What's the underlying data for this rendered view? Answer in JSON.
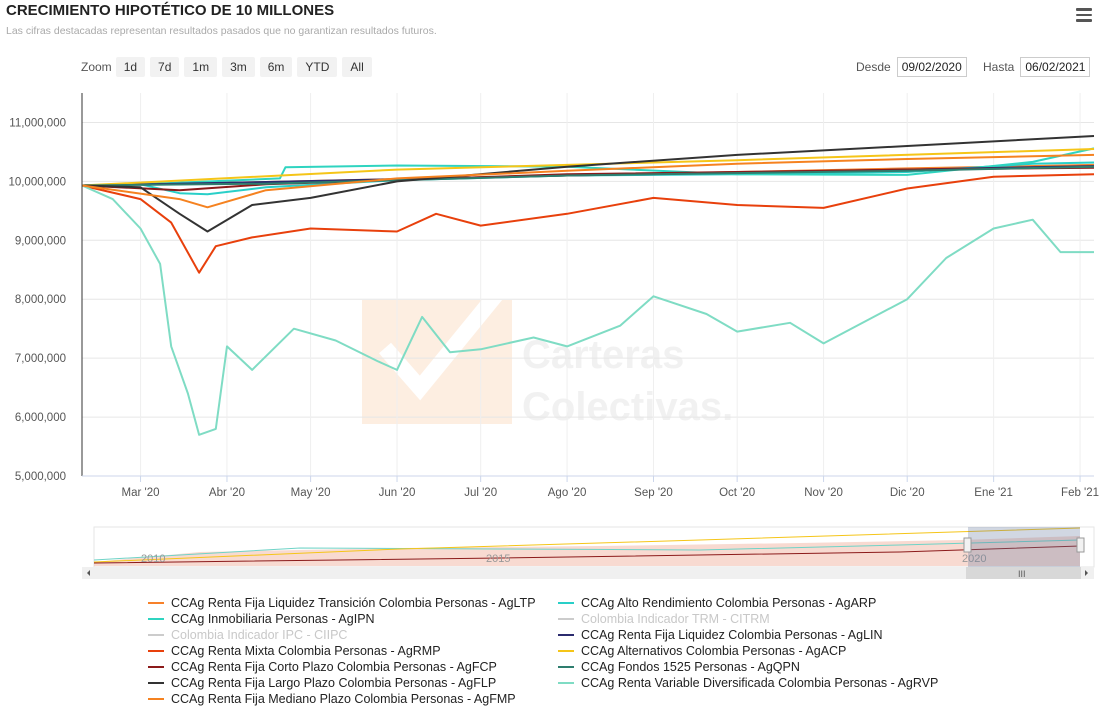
{
  "header": {
    "title": "CRECIMIENTO HIPOTÉTICO DE 10 MILLONES",
    "subtitle": "Las cifras destacadas representan resultados pasados que no garantizan resultados futuros."
  },
  "zoom": {
    "label": "Zoom",
    "buttons": [
      "1d",
      "7d",
      "1m",
      "3m",
      "6m",
      "YTD",
      "All"
    ]
  },
  "range": {
    "from_label": "Desde",
    "from_value": "09/02/2020",
    "to_label": "Hasta",
    "to_value": "06/02/2021"
  },
  "watermark": {
    "line1": "Carteras",
    "line2": "Colectivas."
  },
  "navigator": {
    "labels": [
      "2010",
      "2015",
      "2020"
    ],
    "scroll_grip": "III"
  },
  "chart_data": {
    "type": "line",
    "x_type": "datetime",
    "xlim": [
      "2020-02-09",
      "2021-02-06"
    ],
    "ylim": [
      5000000,
      11500000
    ],
    "y_ticks": [
      5000000,
      6000000,
      7000000,
      8000000,
      9000000,
      10000000,
      11000000
    ],
    "y_tick_labels": [
      "5,000,000",
      "6,000,000",
      "7,000,000",
      "8,000,000",
      "9,000,000",
      "10,000,000",
      "11,000,000"
    ],
    "x_ticks": [
      "2020-03-01",
      "2020-04-01",
      "2020-05-01",
      "2020-06-01",
      "2020-07-01",
      "2020-08-01",
      "2020-09-01",
      "2020-10-01",
      "2020-11-01",
      "2020-12-01",
      "2021-01-01",
      "2021-02-01"
    ],
    "x_tick_labels": [
      "Mar '20",
      "Abr '20",
      "May '20",
      "Jun '20",
      "Jul '20",
      "Ago '20",
      "Sep '20",
      "Oct '20",
      "Nov '20",
      "Dic '20",
      "Ene '21",
      "Feb '21"
    ],
    "grid": true,
    "legend_position": "bottom",
    "series": [
      {
        "name": "CCAg Renta Fija Liquidez Transición Colombia Personas - AgLTP",
        "color": "#f7812a",
        "visible": true,
        "x": [
          "2020-02-09",
          "2020-03-15",
          "2020-04-15",
          "2020-06-01",
          "2020-08-01",
          "2020-10-01",
          "2020-12-01",
          "2021-02-06"
        ],
        "y": [
          9930000,
          9960000,
          9990000,
          10040000,
          10100000,
          10160000,
          10220000,
          10280000
        ]
      },
      {
        "name": "CCAg Alto Rendimiento Colombia Personas - AgARP",
        "color": "#29cfc8",
        "visible": true,
        "x": [
          "2020-02-09",
          "2020-03-01",
          "2020-03-15",
          "2020-03-25",
          "2020-04-15",
          "2020-06-01",
          "2020-08-01",
          "2020-10-01",
          "2020-12-01",
          "2021-01-15",
          "2021-02-06"
        ],
        "y": [
          9930000,
          9950000,
          9800000,
          9780000,
          9900000,
          10020000,
          10100000,
          10120000,
          10160000,
          10300000,
          10320000
        ]
      },
      {
        "name": "CCAg Inmobiliaria Personas - AgIPN",
        "color": "#2fd4c0",
        "visible": true,
        "x": [
          "2020-02-09",
          "2020-03-01",
          "2020-04-20",
          "2020-04-22",
          "2020-06-01",
          "2020-08-01",
          "2020-10-01",
          "2020-12-01",
          "2021-01-15",
          "2021-02-06"
        ],
        "y": [
          9930000,
          9950000,
          10050000,
          10240000,
          10270000,
          10250000,
          10120000,
          10110000,
          10330000,
          10560000
        ]
      },
      {
        "name": "Colombia Indicador TRM - CITRM",
        "color": "#999999",
        "visible": false,
        "x": [],
        "y": []
      },
      {
        "name": "Colombia Indicador IPC - CIIPC",
        "color": "#999999",
        "visible": false,
        "x": [],
        "y": []
      },
      {
        "name": "CCAg Renta Fija Liquidez Colombia Personas - AgLIN",
        "color": "#2b2b6e",
        "visible": true,
        "x": [
          "2020-02-09",
          "2020-04-15",
          "2020-08-01",
          "2020-12-01",
          "2021-02-06"
        ],
        "y": [
          9930000,
          9990000,
          10100000,
          10200000,
          10260000
        ]
      },
      {
        "name": "CCAg Renta Mixta Colombia Personas - AgRMP",
        "color": "#e8400c",
        "visible": true,
        "x": [
          "2020-02-09",
          "2020-03-01",
          "2020-03-12",
          "2020-03-22",
          "2020-03-28",
          "2020-04-10",
          "2020-05-01",
          "2020-06-01",
          "2020-06-15",
          "2020-07-01",
          "2020-08-01",
          "2020-09-01",
          "2020-10-01",
          "2020-11-01",
          "2020-12-01",
          "2021-01-01",
          "2021-02-06"
        ],
        "y": [
          9930000,
          9700000,
          9300000,
          8450000,
          8900000,
          9050000,
          9200000,
          9150000,
          9450000,
          9250000,
          9450000,
          9720000,
          9600000,
          9550000,
          9880000,
          10080000,
          10120000
        ]
      },
      {
        "name": "CCAg Alternativos Colombia Personas - AgACP",
        "color": "#f5c518",
        "visible": true,
        "x": [
          "2020-02-09",
          "2020-06-01",
          "2020-10-01",
          "2021-02-06"
        ],
        "y": [
          9930000,
          10200000,
          10360000,
          10550000
        ]
      },
      {
        "name": "CCAg Renta Fija Corto Plazo Colombia Personas - AgFCP",
        "color": "#8b1a1a",
        "visible": true,
        "x": [
          "2020-02-09",
          "2020-03-15",
          "2020-04-15",
          "2020-08-01",
          "2020-12-01",
          "2021-02-06"
        ],
        "y": [
          9930000,
          9850000,
          9950000,
          10120000,
          10200000,
          10230000
        ]
      },
      {
        "name": "CCAg Fondos 1525 Personas - AgQPN",
        "color": "#2e7d6e",
        "visible": true,
        "x": [
          "2020-02-09",
          "2020-04-15",
          "2020-08-01",
          "2020-12-01",
          "2021-02-06"
        ],
        "y": [
          9930000,
          9960000,
          10100000,
          10180000,
          10250000
        ]
      },
      {
        "name": "CCAg Renta Fija Largo Plazo Colombia Personas - AgFLP",
        "color": "#333333",
        "visible": true,
        "x": [
          "2020-02-09",
          "2020-03-01",
          "2020-03-15",
          "2020-03-25",
          "2020-04-10",
          "2020-05-01",
          "2020-06-01",
          "2020-08-01",
          "2020-10-01",
          "2020-12-01",
          "2021-02-06"
        ],
        "y": [
          9930000,
          9900000,
          9450000,
          9150000,
          9600000,
          9720000,
          10000000,
          10250000,
          10450000,
          10600000,
          10770000
        ]
      },
      {
        "name": "CCAg Renta Variable Diversificada Colombia Personas - AgRVP",
        "color": "#7fdcc4",
        "visible": true,
        "x": [
          "2020-02-09",
          "2020-02-20",
          "2020-03-01",
          "2020-03-08",
          "2020-03-12",
          "2020-03-18",
          "2020-03-22",
          "2020-03-28",
          "2020-04-01",
          "2020-04-10",
          "2020-04-25",
          "2020-05-10",
          "2020-05-25",
          "2020-06-01",
          "2020-06-10",
          "2020-06-20",
          "2020-07-01",
          "2020-07-20",
          "2020-08-01",
          "2020-08-20",
          "2020-09-01",
          "2020-09-20",
          "2020-10-01",
          "2020-10-20",
          "2020-11-01",
          "2020-11-15",
          "2020-12-01",
          "2020-12-15",
          "2021-01-01",
          "2021-01-15",
          "2021-01-25",
          "2021-02-06"
        ],
        "y": [
          9930000,
          9700000,
          9200000,
          8600000,
          7200000,
          6400000,
          5700000,
          5800000,
          7200000,
          6800000,
          7500000,
          7300000,
          6950000,
          6800000,
          7700000,
          7100000,
          7150000,
          7350000,
          7200000,
          7550000,
          8050000,
          7750000,
          7450000,
          7600000,
          7250000,
          7600000,
          8000000,
          8700000,
          9200000,
          9350000,
          8800000,
          8800000
        ]
      },
      {
        "name": "CCAg Renta Fija Mediano Plazo Colombia Personas - AgFMP",
        "color": "#f58220",
        "visible": true,
        "x": [
          "2020-02-09",
          "2020-03-15",
          "2020-03-25",
          "2020-04-15",
          "2020-06-01",
          "2020-08-01",
          "2020-10-01",
          "2020-12-01",
          "2021-02-06"
        ],
        "y": [
          9930000,
          9700000,
          9560000,
          9850000,
          10050000,
          10180000,
          10300000,
          10380000,
          10450000
        ]
      }
    ]
  }
}
